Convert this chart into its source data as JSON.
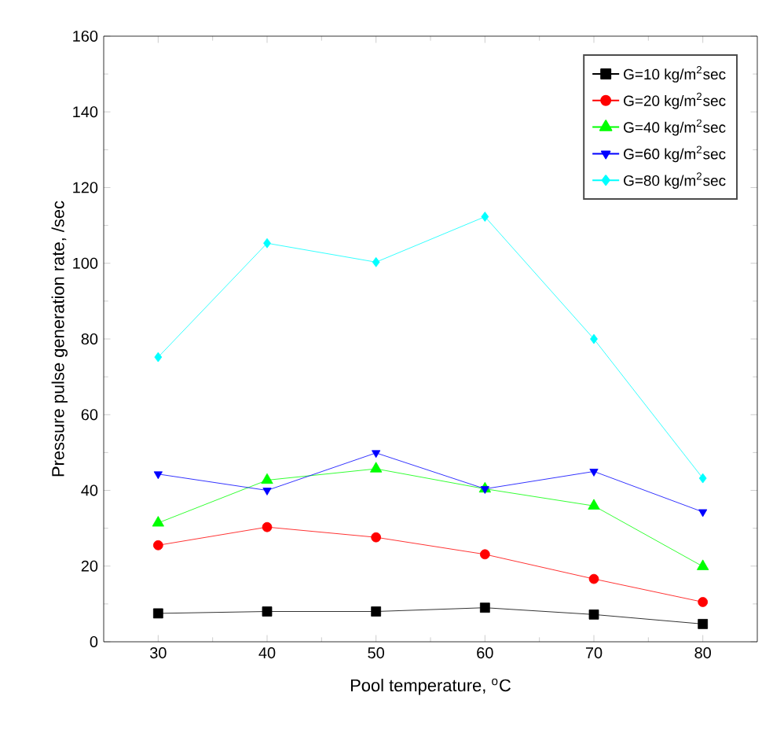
{
  "chart_data": {
    "type": "line",
    "xlabel": "Pool temperature, $^{o}$C",
    "ylabel": "Pressure pulse generation rate, /sec",
    "x": [
      30,
      40,
      50,
      60,
      70,
      80
    ],
    "xlim": [
      25,
      85
    ],
    "xticks": [
      30,
      40,
      50,
      60,
      70,
      80
    ],
    "ylim": [
      0,
      160
    ],
    "yticks": [
      0,
      20,
      40,
      60,
      80,
      100,
      120,
      140,
      160
    ],
    "legend": "top right",
    "grid": false,
    "series": [
      {
        "name": "G=10 kg/m$^{2}$sec",
        "color": "#000000",
        "marker": "square",
        "values": [
          7.5,
          8,
          8,
          9,
          7.2,
          4.7
        ]
      },
      {
        "name": "G=20 kg/m$^{2}$sec",
        "color": "#ff0000",
        "marker": "circle",
        "values": [
          25.5,
          30.3,
          27.6,
          23.1,
          16.6,
          10.5
        ]
      },
      {
        "name": "G=40 kg/m$^{2}$sec",
        "color": "#00ff00",
        "marker": "triangle",
        "values": [
          31.4,
          42.7,
          45.7,
          40.4,
          35.9,
          19.9
        ]
      },
      {
        "name": "G=60 kg/m$^{2}$sec",
        "color": "#0000ff",
        "marker": "triangle down",
        "values": [
          44.3,
          40,
          49.9,
          40.4,
          45,
          34.3
        ]
      },
      {
        "name": "G=80 kg/m$^{2}$sec",
        "color": "#00ffff",
        "marker": "diamond",
        "values": [
          75.2,
          105.3,
          100.3,
          112.3,
          80,
          43.2
        ]
      }
    ]
  }
}
